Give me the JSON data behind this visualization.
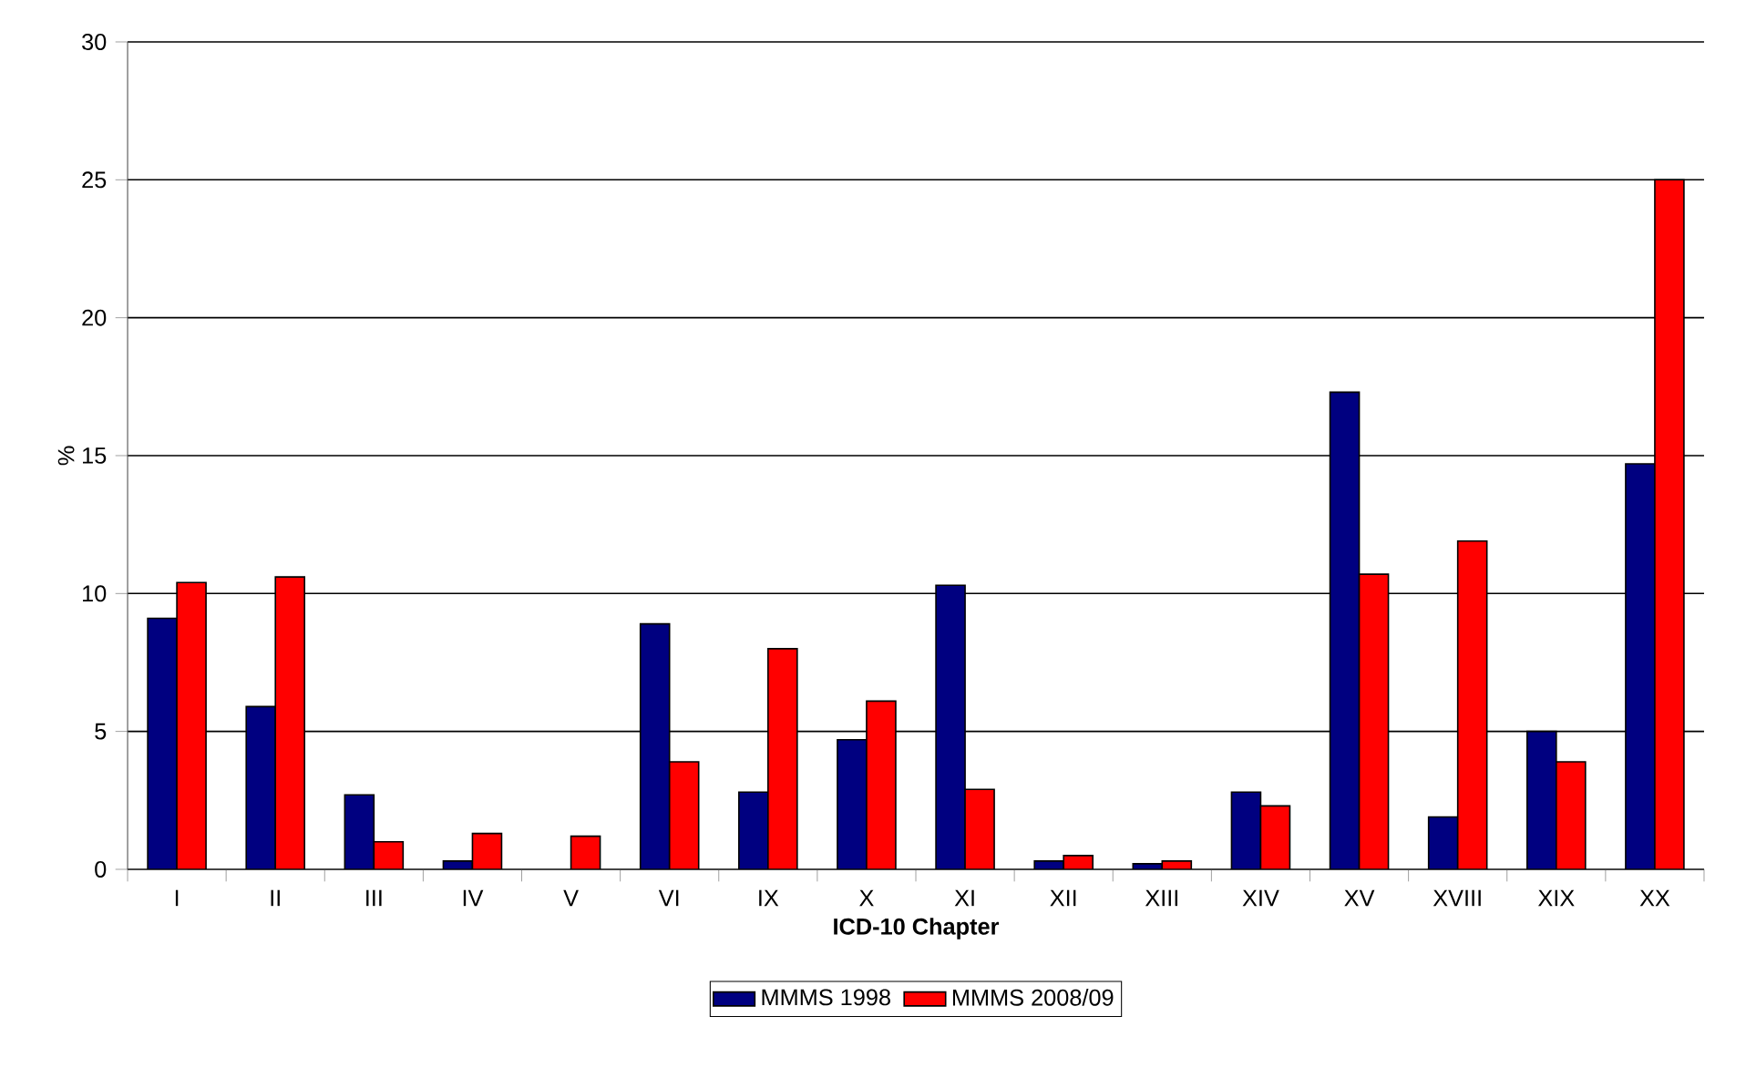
{
  "chart_data": {
    "type": "bar",
    "xlabel": "ICD-10 Chapter",
    "ylabel": "%",
    "categories": [
      "I",
      "II",
      "III",
      "IV",
      "V",
      "VI",
      "IX",
      "X",
      "XI",
      "XII",
      "XIII",
      "XIV",
      "XV",
      "XVIII",
      "XIX",
      "XX"
    ],
    "series": [
      {
        "name": "MMMS 1998",
        "color": "#000080",
        "values": [
          9.1,
          5.9,
          2.7,
          0.3,
          null,
          8.9,
          2.8,
          4.7,
          10.3,
          0.3,
          0.2,
          2.8,
          17.3,
          1.9,
          5.0,
          14.7
        ]
      },
      {
        "name": "MMMS 2008/09",
        "color": "#ff0000",
        "values": [
          10.4,
          10.6,
          1.0,
          1.3,
          1.2,
          3.9,
          8.0,
          6.1,
          2.9,
          0.5,
          0.3,
          2.3,
          10.7,
          11.9,
          3.9,
          25.0
        ]
      }
    ],
    "ylim": [
      0,
      30
    ],
    "yticks": [
      0,
      5,
      10,
      15,
      20,
      25,
      30
    ],
    "grid": "y",
    "legend": "bottom"
  }
}
